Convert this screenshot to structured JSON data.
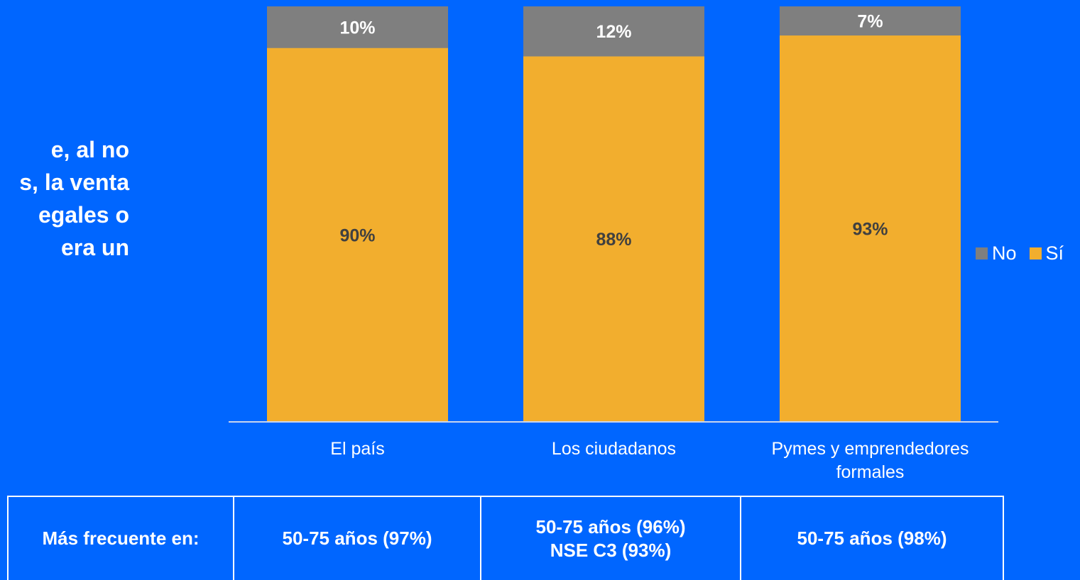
{
  "question": {
    "lines": [
      "e, al no",
      "s, la venta",
      "egales o",
      "era un"
    ]
  },
  "chart_data": {
    "type": "bar",
    "stacked": true,
    "categories": [
      "El país",
      "Los ciudadanos",
      "Pymes y emprendedores formales"
    ],
    "category_lines": [
      [
        "El país"
      ],
      [
        "Los ciudadanos"
      ],
      [
        "Pymes y emprendedores",
        "formales"
      ]
    ],
    "series": [
      {
        "name": "Sí",
        "values": [
          90,
          88,
          93
        ],
        "labels": [
          "90%",
          "88%",
          "93%"
        ],
        "color": "#f2ae2e"
      },
      {
        "name": "No",
        "values": [
          10,
          12,
          7
        ],
        "labels": [
          "10%",
          "12%",
          "7%"
        ],
        "color": "#7f7f7f"
      }
    ],
    "ylim": [
      0,
      100
    ],
    "legend": {
      "position": "right",
      "order": [
        "No",
        "Sí"
      ]
    },
    "grid": false
  },
  "table": {
    "header": "Más frecuente en:",
    "cells": [
      [
        "50-75 años (97%)"
      ],
      [
        "50-75 años (96%)",
        "NSE C3 (93%)"
      ],
      [
        "50-75 años (98%)"
      ]
    ]
  },
  "colors": {
    "background": "#0066ff",
    "si": "#f2ae2e",
    "no": "#7f7f7f",
    "label_dark": "#404040",
    "text": "#ffffff"
  }
}
